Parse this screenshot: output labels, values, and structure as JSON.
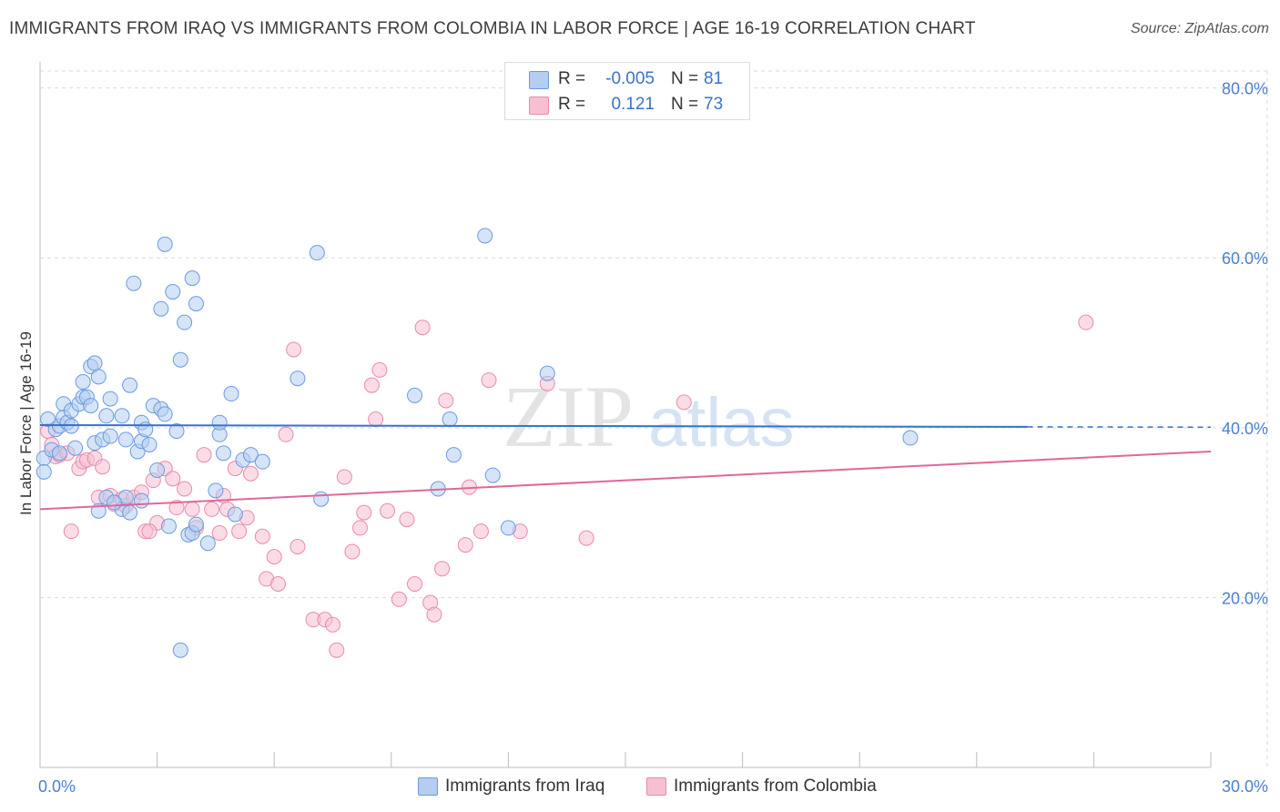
{
  "title": "IMMIGRANTS FROM IRAQ VS IMMIGRANTS FROM COLOMBIA IN LABOR FORCE | AGE 16-19 CORRELATION CHART",
  "source": "Source: ZipAtlas.com",
  "watermark": {
    "part1": "ZIP",
    "part2": "atlas"
  },
  "legend": {
    "r_label": "R =",
    "n_label": "N =",
    "rows": [
      {
        "r": "-0.005",
        "n": "81",
        "swatch_fill": "#b5cdf0",
        "swatch_stroke": "#6b9ae0"
      },
      {
        "r": "0.121",
        "n": "73",
        "swatch_fill": "#f7c0d2",
        "swatch_stroke": "#e88aab"
      }
    ]
  },
  "bottom_legend": {
    "items": [
      {
        "label": "Immigrants from Iraq",
        "swatch_fill": "#b5cdf0",
        "swatch_stroke": "#6b9ae0"
      },
      {
        "label": "Immigrants from Colombia",
        "swatch_fill": "#f7c0d2",
        "swatch_stroke": "#e88aab"
      }
    ]
  },
  "chart_data": {
    "type": "scatter",
    "title": "IMMIGRANTS FROM IRAQ VS IMMIGRANTS FROM COLOMBIA IN LABOR FORCE | AGE 16-19 CORRELATION CHART",
    "xlabel": "",
    "ylabel": "In Labor Force | Age 16-19",
    "xlim": [
      0,
      30
    ],
    "ylim": [
      0,
      82
    ],
    "x_tick_labels": [
      {
        "value": 0,
        "label": "0.0%"
      },
      {
        "value": 30,
        "label": "30.0%"
      }
    ],
    "x_minor_ticks": [
      3,
      6,
      9,
      12,
      15,
      18,
      21,
      24,
      27,
      30
    ],
    "y_ticks": [
      {
        "value": 20,
        "label": "20.0%"
      },
      {
        "value": 40,
        "label": "40.0%"
      },
      {
        "value": 60,
        "label": "60.0%"
      },
      {
        "value": 80,
        "label": "80.0%"
      }
    ],
    "grid": true,
    "series": [
      {
        "name": "Immigrants from Iraq",
        "color": "#6b9ae0",
        "fill": "#b5cdf0",
        "trend": {
          "x": [
            0,
            25.3
          ],
          "y": [
            40.3,
            40.1
          ],
          "dashed_to": 30,
          "color": "#3572cc"
        },
        "points": [
          [
            0.2,
            41
          ],
          [
            0.4,
            39.8
          ],
          [
            0.5,
            40.2
          ],
          [
            0.6,
            42.8
          ],
          [
            0.6,
            41.2
          ],
          [
            0.7,
            40.6
          ],
          [
            0.8,
            40.2
          ],
          [
            0.8,
            42
          ],
          [
            0.9,
            37.6
          ],
          [
            1.0,
            42.8
          ],
          [
            1.1,
            43.6
          ],
          [
            1.1,
            45.4
          ],
          [
            1.2,
            43.6
          ],
          [
            1.3,
            47.2
          ],
          [
            1.3,
            42.6
          ],
          [
            1.4,
            47.6
          ],
          [
            1.5,
            46
          ],
          [
            1.4,
            38.2
          ],
          [
            1.6,
            38.6
          ],
          [
            1.7,
            41.4
          ],
          [
            1.8,
            39
          ],
          [
            1.8,
            43.4
          ],
          [
            2.1,
            41.4
          ],
          [
            2.2,
            38.6
          ],
          [
            2.3,
            45
          ],
          [
            2.4,
            57
          ],
          [
            2.5,
            37.2
          ],
          [
            2.6,
            38.4
          ],
          [
            2.6,
            40.6
          ],
          [
            2.7,
            39.8
          ],
          [
            2.8,
            38
          ],
          [
            2.9,
            42.6
          ],
          [
            3.1,
            54
          ],
          [
            3.1,
            42.2
          ],
          [
            3.2,
            41.6
          ],
          [
            3.2,
            61.6
          ],
          [
            3.4,
            56
          ],
          [
            3.5,
            39.6
          ],
          [
            3.6,
            48
          ],
          [
            3.7,
            52.4
          ],
          [
            3.9,
            57.6
          ],
          [
            4.0,
            54.6
          ],
          [
            4.6,
            39.2
          ],
          [
            4.6,
            40.6
          ],
          [
            4.7,
            37
          ],
          [
            4.9,
            44
          ],
          [
            5.2,
            36.2
          ],
          [
            5.4,
            36.8
          ],
          [
            5.7,
            36
          ],
          [
            6.6,
            45.8
          ],
          [
            7.1,
            60.6
          ],
          [
            7.2,
            31.6
          ],
          [
            9.6,
            43.8
          ],
          [
            10.2,
            32.8
          ],
          [
            10.5,
            41
          ],
          [
            10.6,
            36.8
          ],
          [
            11.4,
            62.6
          ],
          [
            11.6,
            34.4
          ],
          [
            12.0,
            28.2
          ],
          [
            13.0,
            46.4
          ],
          [
            22.3,
            38.8
          ],
          [
            1.5,
            30.2
          ],
          [
            1.7,
            31.8
          ],
          [
            2.1,
            30.4
          ],
          [
            2.3,
            30
          ],
          [
            2.2,
            31.8
          ],
          [
            3.0,
            35
          ],
          [
            3.3,
            28.4
          ],
          [
            3.8,
            27.4
          ],
          [
            3.9,
            27.6
          ],
          [
            4.0,
            28.6
          ],
          [
            4.3,
            26.4
          ],
          [
            4.5,
            32.6
          ],
          [
            5.0,
            29.8
          ],
          [
            3.6,
            13.8
          ],
          [
            1.9,
            31.2
          ],
          [
            2.6,
            31.4
          ],
          [
            0.1,
            36.4
          ],
          [
            0.1,
            34.8
          ],
          [
            0.3,
            37.4
          ],
          [
            0.5,
            37
          ]
        ]
      },
      {
        "name": "Immigrants from Colombia",
        "color": "#e88aab",
        "fill": "#f7c0d2",
        "trend": {
          "x": [
            0,
            30
          ],
          "y": [
            30.4,
            37.2
          ],
          "color": "#e0679a"
        },
        "points": [
          [
            0.2,
            39.6
          ],
          [
            0.3,
            38
          ],
          [
            0.4,
            36.6
          ],
          [
            0.5,
            36.8
          ],
          [
            0.7,
            37
          ],
          [
            0.8,
            27.8
          ],
          [
            1.0,
            35.2
          ],
          [
            1.1,
            36
          ],
          [
            1.2,
            36.2
          ],
          [
            1.4,
            36.4
          ],
          [
            1.5,
            31.8
          ],
          [
            1.6,
            35.4
          ],
          [
            1.8,
            32
          ],
          [
            1.9,
            31
          ],
          [
            2.1,
            31.6
          ],
          [
            2.2,
            30.8
          ],
          [
            2.4,
            31.8
          ],
          [
            2.6,
            32.4
          ],
          [
            2.7,
            27.8
          ],
          [
            2.9,
            33.8
          ],
          [
            3.0,
            28.8
          ],
          [
            3.2,
            35.2
          ],
          [
            3.4,
            34
          ],
          [
            3.5,
            30.6
          ],
          [
            3.7,
            32.8
          ],
          [
            3.9,
            30.4
          ],
          [
            4.0,
            28.2
          ],
          [
            4.2,
            36.8
          ],
          [
            4.4,
            30.4
          ],
          [
            4.6,
            27.6
          ],
          [
            4.7,
            32
          ],
          [
            4.8,
            30.4
          ],
          [
            5.0,
            35.2
          ],
          [
            5.1,
            27.8
          ],
          [
            5.3,
            29.4
          ],
          [
            5.4,
            34.6
          ],
          [
            5.7,
            27.2
          ],
          [
            5.8,
            22.2
          ],
          [
            6.0,
            24.8
          ],
          [
            6.1,
            21.6
          ],
          [
            6.3,
            39.2
          ],
          [
            6.5,
            49.2
          ],
          [
            6.6,
            26
          ],
          [
            7.0,
            17.4
          ],
          [
            7.3,
            17.4
          ],
          [
            7.5,
            16.8
          ],
          [
            7.6,
            13.8
          ],
          [
            7.8,
            34.2
          ],
          [
            8.0,
            25.4
          ],
          [
            8.2,
            28.2
          ],
          [
            8.3,
            30
          ],
          [
            8.5,
            45
          ],
          [
            8.6,
            41
          ],
          [
            8.7,
            46.8
          ],
          [
            8.9,
            30.2
          ],
          [
            9.2,
            19.8
          ],
          [
            9.4,
            29.2
          ],
          [
            9.6,
            21.6
          ],
          [
            9.8,
            51.8
          ],
          [
            10.0,
            19.4
          ],
          [
            10.1,
            18
          ],
          [
            10.3,
            23.4
          ],
          [
            10.4,
            43.2
          ],
          [
            10.9,
            26.2
          ],
          [
            11.0,
            33
          ],
          [
            11.3,
            27.8
          ],
          [
            11.5,
            45.6
          ],
          [
            12.3,
            27.8
          ],
          [
            13.0,
            45.2
          ],
          [
            14.0,
            27
          ],
          [
            16.5,
            43
          ],
          [
            26.8,
            52.4
          ],
          [
            2.8,
            27.8
          ]
        ]
      }
    ]
  }
}
